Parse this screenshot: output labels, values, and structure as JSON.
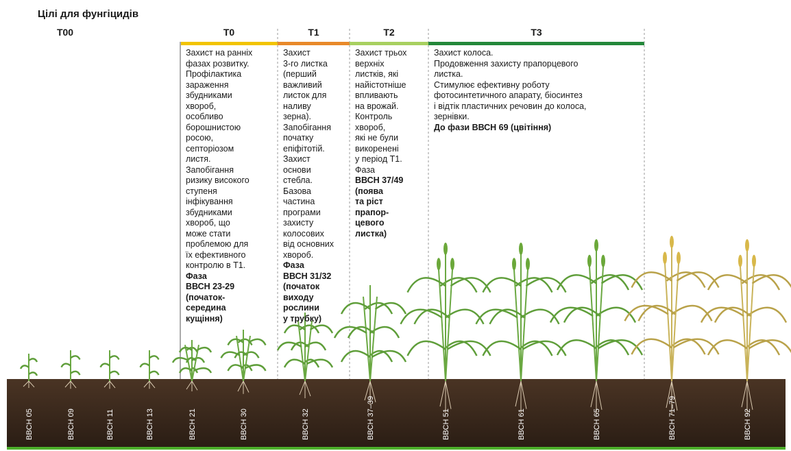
{
  "header": {
    "title": "Цілі для фунгіцидів"
  },
  "stages": [
    {
      "label": "T00",
      "color": null,
      "lines": [],
      "bold_lines": []
    },
    {
      "label": "T0",
      "color": "#f2c400",
      "lines": [
        "Захист на ранніх",
        "фазах розвитку.",
        "Профілактика",
        "зараження",
        "збудниками",
        "хвороб,",
        "особливо",
        "борошнистою",
        "росою,",
        "септоріозом",
        "листя.",
        "Запобігання",
        "ризику високого",
        "ступеня",
        "інфікування",
        "збудниками",
        "хвороб, що",
        "може стати",
        "проблемою для",
        "їх ефективного",
        "контролю в Т1."
      ],
      "bold_lines": [
        "Фаза",
        "ВВСН 23-29",
        "(початок-",
        "середина",
        "кущіння)"
      ]
    },
    {
      "label": "T1",
      "color": "#e8892a",
      "lines": [
        "Захист",
        "3-го листка",
        "(перший",
        "важливий",
        "листок для",
        "наливу",
        "зерна).",
        "Запобігання",
        "початку",
        "епіфітотій.",
        "Захист",
        "основи",
        "стебла.",
        "Базова",
        "частина",
        "програми",
        "захисту",
        "колосових",
        "від основних",
        "хвороб."
      ],
      "bold_lines": [
        "Фаза",
        "ВВСН 31/32",
        "(початок",
        "виходу",
        "рослини",
        "у трубку)"
      ]
    },
    {
      "label": "T2",
      "color": "#a8d060",
      "lines": [
        "Захист трьох",
        "верхніх",
        "листків, які",
        "найістотніше",
        "впливають",
        "на врожай.",
        "Контроль",
        "хвороб,",
        "які не були",
        "викоренені",
        "у період Т1.",
        "Фаза"
      ],
      "bold_lines": [
        "ВВСН 37/49",
        "(поява",
        "та ріст",
        "прапор-",
        "цевого",
        "листка)"
      ]
    },
    {
      "label": "T3",
      "color": "#23883a",
      "lines": [
        "Захист колоса.",
        "Продовження захисту прапорцевого",
        "листка.",
        "Стимулює ефективну роботу",
        "фотосинтетичного апарату, біосинтез",
        "і відтік пластичних речовин до колоса,",
        "зернівки."
      ],
      "bold_lines": [
        "До фази ВВСН 69 (цвітіння)"
      ]
    }
  ],
  "growth_stages": [
    "BBCH 05",
    "BBCH 09",
    "BBCH 11",
    "BBCH 13",
    "BBCH 21",
    "BBCH 30",
    "BBCH 32",
    "BBCH 37–39",
    "BBCH 51",
    "BBCH 61",
    "BBCH 65",
    "BBCH 71–79",
    "BBCH 92"
  ]
}
